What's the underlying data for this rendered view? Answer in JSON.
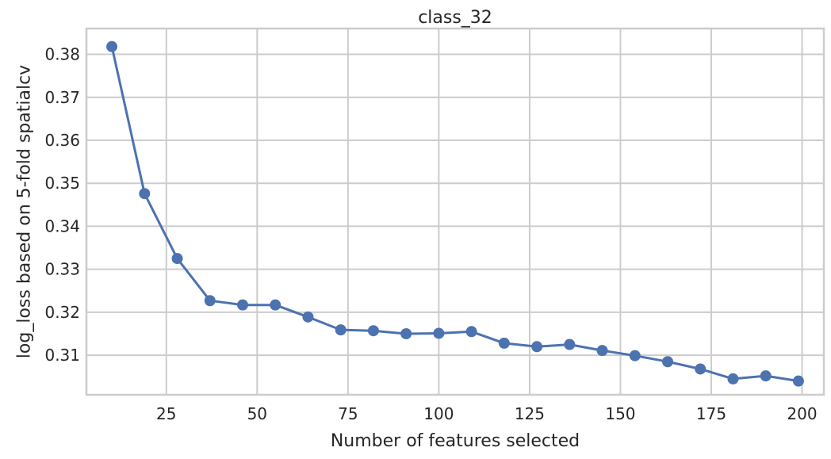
{
  "chart_data": {
    "type": "line",
    "title": "class_32",
    "xlabel": "Number of features selected",
    "ylabel": "log_loss based on 5-fold spatialcv",
    "xlim": [
      3,
      206
    ],
    "ylim": [
      0.3008,
      0.386
    ],
    "xticks": [
      25,
      50,
      75,
      100,
      125,
      150,
      175,
      200
    ],
    "yticks": [
      0.31,
      0.32,
      0.33,
      0.34,
      0.35,
      0.36,
      0.37,
      0.38
    ],
    "grid": true,
    "series": [
      {
        "color": "#4c72b0",
        "marker": "circle",
        "x": [
          10,
          19,
          28,
          37,
          46,
          55,
          64,
          73,
          82,
          91,
          100,
          109,
          118,
          127,
          136,
          145,
          154,
          163,
          172,
          181,
          190,
          199
        ],
        "y": [
          0.3818,
          0.3476,
          0.3325,
          0.3227,
          0.3217,
          0.3217,
          0.3189,
          0.3159,
          0.3157,
          0.315,
          0.3151,
          0.3155,
          0.3128,
          0.312,
          0.3125,
          0.3111,
          0.3099,
          0.3085,
          0.3068,
          0.3045,
          0.3052,
          0.304
        ]
      }
    ]
  }
}
